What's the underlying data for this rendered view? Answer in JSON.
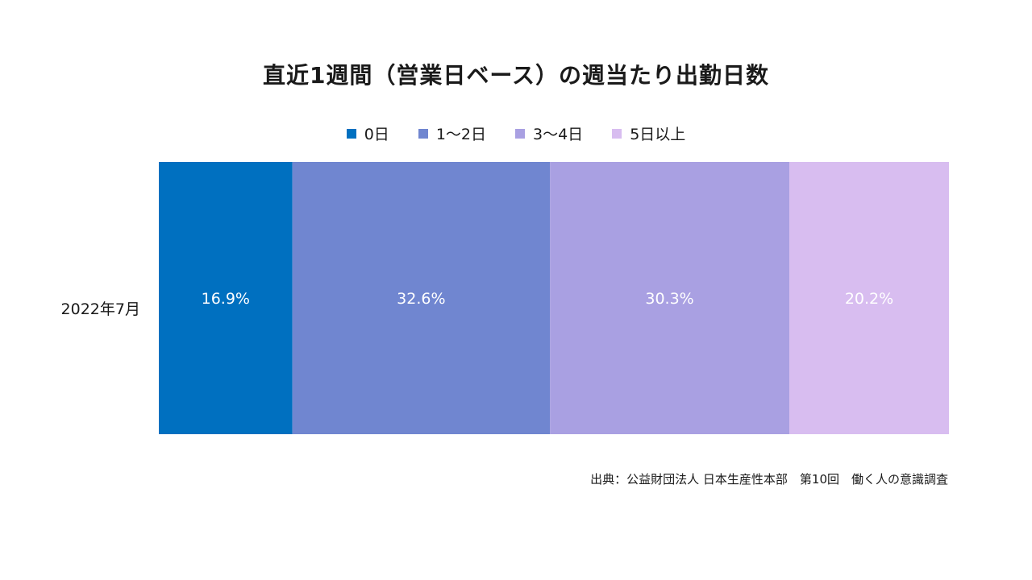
{
  "chart_data": {
    "type": "bar",
    "orientation": "horizontal",
    "stacked": true,
    "normalized": true,
    "title": "直近1週間（営業日ベース）の週当たり出勤日数",
    "categories": [
      "2022年7月"
    ],
    "series": [
      {
        "name": "0日",
        "values": [
          16.9
        ],
        "label": "16.9%",
        "color": "#0070c0"
      },
      {
        "name": "1〜2日",
        "values": [
          32.6
        ],
        "label": "32.6%",
        "color": "#7086d0"
      },
      {
        "name": "3〜4日",
        "values": [
          30.3
        ],
        "label": "30.3%",
        "color": "#a9a0e2"
      },
      {
        "name": "5日以上",
        "values": [
          20.2
        ],
        "label": "20.2%",
        "color": "#d8bdf0"
      }
    ],
    "xlim": [
      0,
      100
    ],
    "xlabel": "",
    "ylabel": "",
    "grid": false,
    "legend_position": "top"
  },
  "source": "出典：公益財団法人 日本生産性本部　第10回　働く人の意識調査",
  "colors": {
    "label_text": "#ffffff",
    "text": "#1a1a1a"
  }
}
